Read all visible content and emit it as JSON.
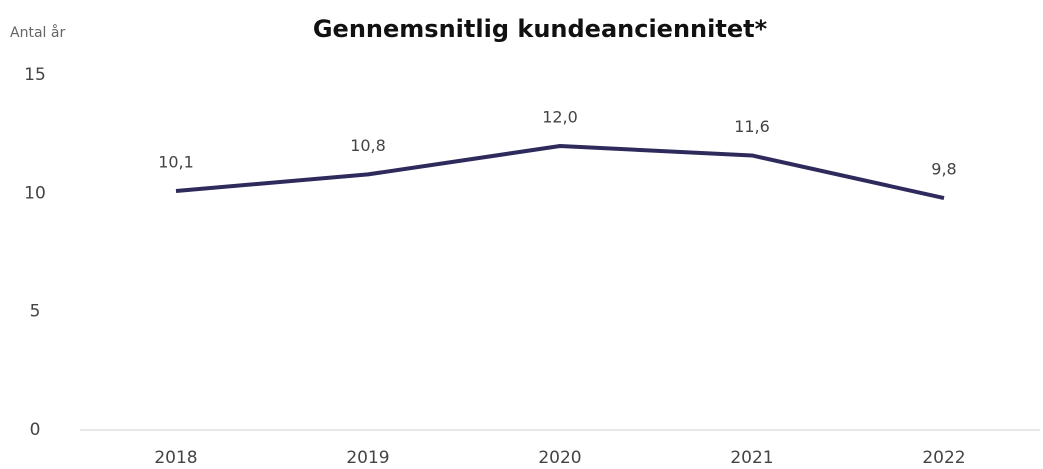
{
  "chart_data": {
    "type": "line",
    "title": "Gennemsnitlig kundeanciennitet*",
    "y_label": "Antal år",
    "categories": [
      "2018",
      "2019",
      "2020",
      "2021",
      "2022"
    ],
    "series": [
      {
        "name": "Gennemsnitlig kundeanciennitet",
        "color": "#2e2a5c",
        "values": [
          10.1,
          10.8,
          12.0,
          11.6,
          9.8
        ],
        "value_labels": [
          "10,1",
          "10,8",
          "12,0",
          "11,6",
          "9,8"
        ]
      }
    ],
    "ylim": [
      0,
      15
    ],
    "yticks": [
      0,
      5,
      10,
      15
    ],
    "grid": false
  }
}
